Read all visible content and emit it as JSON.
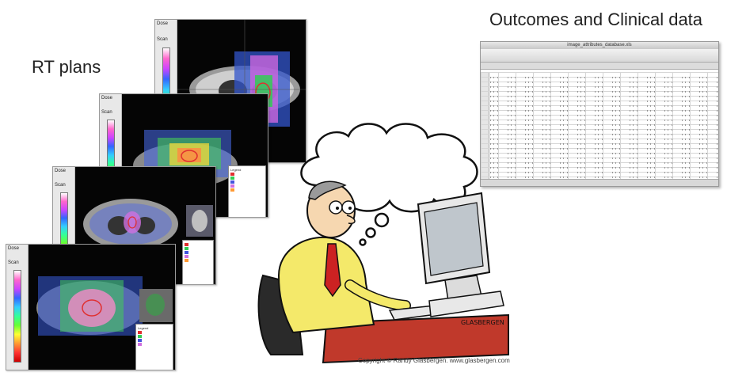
{
  "labels": {
    "rt_plans": "RT plans",
    "outcomes": "Outcomes and Clinical data"
  },
  "rt_plan_windows": {
    "dose_label": "Dose",
    "scan_label": "Scan",
    "legend_title": "Legend",
    "colorbar_colors": [
      "#ffffff",
      "#ff66cc",
      "#cc44ff",
      "#3366ff",
      "#33ccff",
      "#33ff99",
      "#66ff33",
      "#ffff33",
      "#ff9933",
      "#ff3333",
      "#cc0000"
    ]
  },
  "spreadsheet": {
    "title": "image_attributes_database.xls"
  },
  "cartoon": {
    "signature": "GLASBERGEN",
    "copyright": "Copyright © Randy Glasbergen.   www.glasbergen.com"
  },
  "colors": {
    "dose_red": "#e03030",
    "dose_green": "#33cc55",
    "dose_blue": "#4455dd",
    "dose_magenta": "#d070e0",
    "desk": "#c0392b",
    "shirt": "#f4e96a",
    "tie": "#cc2222"
  }
}
